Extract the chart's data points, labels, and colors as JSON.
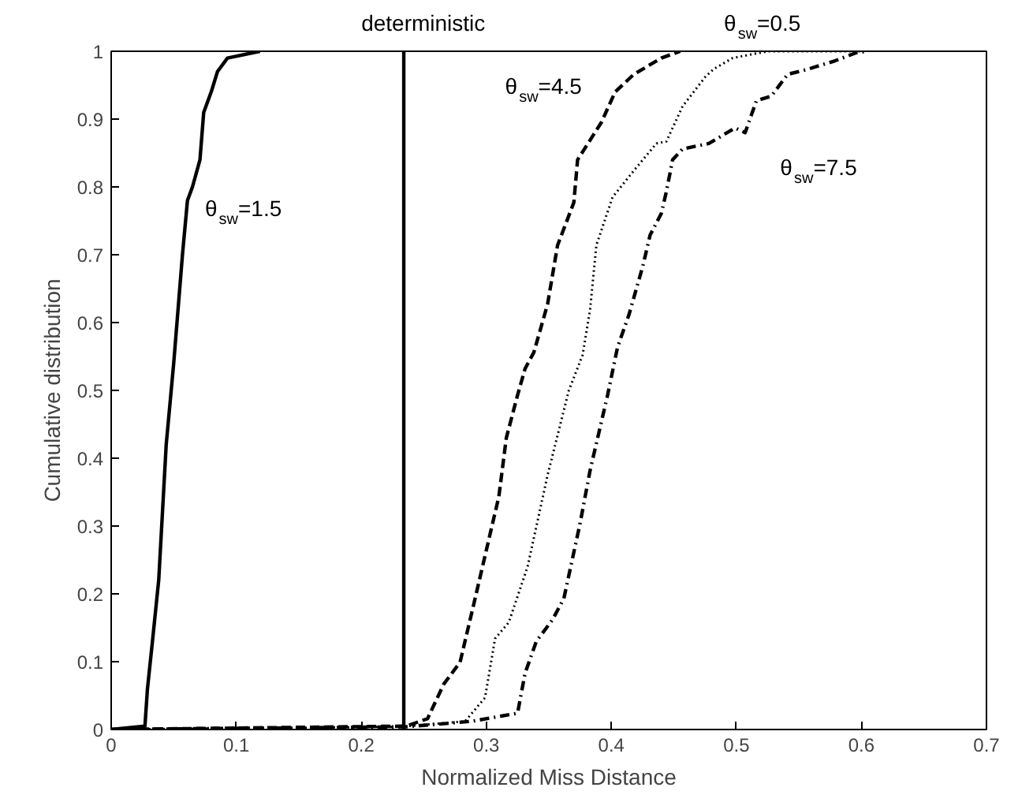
{
  "chart_data": {
    "type": "line",
    "xlabel": "Normalized Miss Distance",
    "ylabel": "Cumulative distribution",
    "xlim": [
      0,
      0.7
    ],
    "ylim": [
      0,
      1
    ],
    "xticks": [
      0,
      0.1,
      0.2,
      0.3,
      0.4,
      0.5,
      0.6,
      0.7
    ],
    "yticks": [
      0,
      0.1,
      0.2,
      0.3,
      0.4,
      0.5,
      0.6,
      0.7,
      0.8,
      0.9,
      1
    ],
    "grid": false,
    "marker": "none",
    "series": [
      {
        "color": "#000000",
        "line_style": "solid",
        "x": [
          0,
          0.027,
          0.029,
          0.033,
          0.038,
          0.044,
          0.05,
          0.057,
          0.061,
          0.065,
          0.071,
          0.074,
          0.08,
          0.085,
          0.093,
          0.119
        ],
        "values": [
          0,
          0.005,
          0.06,
          0.13,
          0.22,
          0.42,
          0.54,
          0.7,
          0.78,
          0.8,
          0.84,
          0.91,
          0.94,
          0.97,
          0.99,
          1
        ]
      },
      {
        "color": "#000000",
        "line_style": "solid",
        "x": [
          0.234,
          0.234
        ],
        "values": [
          0,
          1
        ]
      },
      {
        "color": "#000000",
        "line_style": "dashed",
        "x": [
          0,
          0.236,
          0.253,
          0.266,
          0.279,
          0.29,
          0.303,
          0.31,
          0.316,
          0.325,
          0.331,
          0.338,
          0.349,
          0.357,
          0.37,
          0.373,
          0.392,
          0.403,
          0.418,
          0.44,
          0.455
        ],
        "values": [
          0,
          0.005,
          0.016,
          0.067,
          0.099,
          0.185,
          0.288,
          0.343,
          0.43,
          0.493,
          0.532,
          0.556,
          0.627,
          0.714,
          0.777,
          0.84,
          0.895,
          0.94,
          0.966,
          0.99,
          1
        ]
      },
      {
        "color": "#000000",
        "line_style": "dotted",
        "x": [
          0,
          0.231,
          0.283,
          0.299,
          0.307,
          0.318,
          0.333,
          0.349,
          0.366,
          0.377,
          0.383,
          0.388,
          0.401,
          0.418,
          0.436,
          0.444,
          0.457,
          0.475,
          0.482,
          0.497,
          0.525,
          0.6
        ],
        "values": [
          0,
          0.004,
          0.012,
          0.047,
          0.134,
          0.158,
          0.24,
          0.375,
          0.5,
          0.552,
          0.619,
          0.714,
          0.785,
          0.824,
          0.864,
          0.867,
          0.919,
          0.962,
          0.974,
          0.99,
          1,
          1
        ]
      },
      {
        "color": "#000000",
        "line_style": "dashdot",
        "x": [
          0,
          0.236,
          0.288,
          0.325,
          0.331,
          0.34,
          0.353,
          0.362,
          0.375,
          0.383,
          0.397,
          0.405,
          0.414,
          0.425,
          0.431,
          0.44,
          0.444,
          0.449,
          0.457,
          0.478,
          0.499,
          0.507,
          0.516,
          0.528,
          0.541,
          0.558,
          0.579,
          0.596,
          0.605
        ],
        "values": [
          0,
          0.004,
          0.012,
          0.024,
          0.083,
          0.13,
          0.162,
          0.193,
          0.304,
          0.382,
          0.493,
          0.564,
          0.611,
          0.682,
          0.729,
          0.761,
          0.793,
          0.84,
          0.856,
          0.864,
          0.887,
          0.88,
          0.927,
          0.934,
          0.966,
          0.974,
          0.986,
          0.998,
          1
        ]
      }
    ],
    "annotations": [
      "deterministic",
      "θ$_{sw}$=1.5",
      "θ$_{sw}$=4.5",
      "θ$_{sw}$=0.5",
      "θ$_{sw}$=7.5"
    ]
  }
}
